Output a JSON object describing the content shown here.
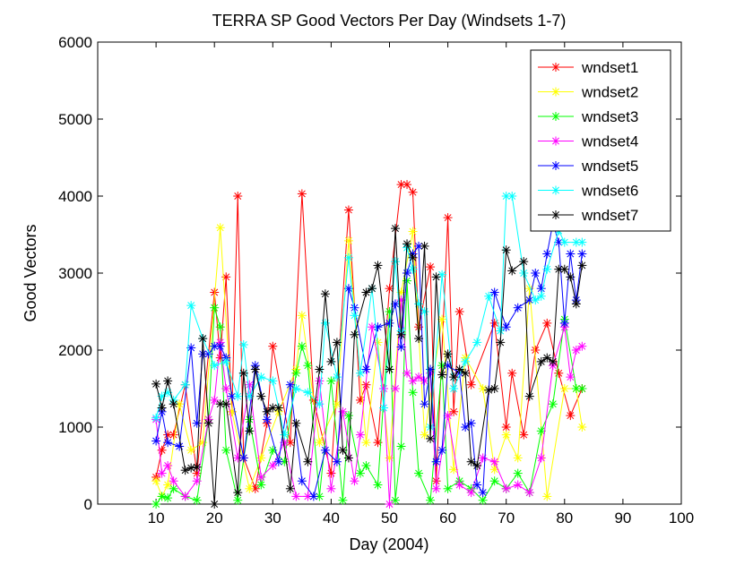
{
  "chart_data": {
    "type": "line",
    "title": "TERRA SP Good Vectors Per Day (Windsets 1-7)",
    "xlabel": "Day (2004)",
    "ylabel": "Good Vectors",
    "xlim": [
      0,
      100
    ],
    "ylim": [
      0,
      6000
    ],
    "xticks": [
      10,
      20,
      30,
      40,
      50,
      60,
      70,
      80,
      90,
      100
    ],
    "yticks": [
      0,
      1000,
      2000,
      3000,
      4000,
      5000,
      6000
    ],
    "grid": false,
    "legend_position": "top-right",
    "marker": "asterisk",
    "series": [
      {
        "name": "wndset1",
        "color": "#ff0000",
        "x": [
          10,
          11,
          12,
          13,
          15,
          17,
          20,
          21,
          22,
          23,
          24,
          25,
          27,
          29,
          30,
          33,
          35,
          37,
          40,
          43,
          45,
          46,
          48,
          50,
          52,
          53,
          54,
          55,
          57,
          58,
          60,
          61,
          62,
          64,
          68,
          70,
          71,
          73,
          75,
          77,
          79,
          81,
          83
        ],
        "y": [
          350,
          700,
          900,
          900,
          1550,
          400,
          2750,
          1900,
          2950,
          1200,
          4000,
          600,
          200,
          1050,
          2050,
          800,
          4030,
          1350,
          400,
          3820,
          1350,
          1550,
          800,
          2800,
          4150,
          4150,
          4050,
          2300,
          3080,
          300,
          3720,
          1200,
          2500,
          1550,
          2350,
          1000,
          1700,
          900,
          2000,
          2350,
          1700,
          1150,
          1500
        ]
      },
      {
        "name": "wndset2",
        "color": "#ffff00",
        "x": [
          10,
          11,
          12,
          14,
          16,
          18,
          21,
          23,
          26,
          28,
          31,
          34,
          35,
          38,
          41,
          43,
          46,
          48,
          50,
          52,
          54,
          56,
          59,
          61,
          63,
          66,
          68,
          70,
          72,
          74,
          77,
          80,
          82,
          83
        ],
        "y": [
          300,
          100,
          250,
          1300,
          700,
          800,
          3590,
          1200,
          200,
          600,
          1200,
          1750,
          2450,
          800,
          1300,
          3420,
          800,
          2100,
          600,
          2750,
          3540,
          900,
          2400,
          450,
          1900,
          1500,
          450,
          900,
          600,
          2800,
          100,
          1500,
          1500,
          1000
        ]
      },
      {
        "name": "wndset3",
        "color": "#00ff00",
        "x": [
          10,
          11,
          12,
          13,
          15,
          17,
          19,
          20,
          21,
          22,
          24,
          26,
          28,
          30,
          32,
          34,
          35,
          36,
          38,
          40,
          42,
          43,
          45,
          46,
          48,
          50,
          51,
          52,
          53,
          54,
          55,
          57,
          59,
          60,
          62,
          64,
          66,
          68,
          70,
          72,
          74,
          76,
          78,
          80,
          82,
          83
        ],
        "y": [
          0,
          100,
          80,
          200,
          100,
          50,
          1100,
          2550,
          2300,
          700,
          50,
          1100,
          250,
          700,
          550,
          1700,
          2050,
          1800,
          100,
          1600,
          50,
          1150,
          400,
          500,
          250,
          2500,
          50,
          750,
          2900,
          1450,
          400,
          50,
          1800,
          200,
          300,
          200,
          50,
          300,
          200,
          400,
          150,
          950,
          1300,
          2400,
          1500,
          1500
        ]
      },
      {
        "name": "wndset4",
        "color": "#ff00ff",
        "x": [
          10,
          11,
          12,
          13,
          15,
          17,
          19,
          20,
          21,
          22,
          24,
          26,
          28,
          30,
          32,
          34,
          36,
          38,
          40,
          42,
          44,
          45,
          47,
          49,
          50,
          51,
          52,
          53,
          54,
          55,
          56,
          57,
          58,
          60,
          62,
          64,
          66,
          68,
          70,
          72,
          74,
          76,
          78,
          80,
          81,
          82,
          83
        ],
        "y": [
          1100,
          400,
          500,
          300,
          100,
          300,
          1100,
          1350,
          2100,
          1500,
          600,
          1550,
          350,
          500,
          800,
          100,
          100,
          1600,
          200,
          1200,
          300,
          900,
          2300,
          1500,
          0,
          1500,
          2650,
          1700,
          1600,
          1650,
          1600,
          1700,
          200,
          1150,
          250,
          150,
          600,
          550,
          200,
          250,
          150,
          600,
          1800,
          2300,
          1650,
          2000,
          2050
        ]
      },
      {
        "name": "wndset5",
        "color": "#0000ff",
        "x": [
          10,
          11,
          12,
          14,
          16,
          17,
          18,
          19,
          20,
          21,
          22,
          23,
          25,
          27,
          29,
          31,
          33,
          35,
          37,
          39,
          41,
          43,
          44,
          46,
          48,
          50,
          51,
          52,
          53,
          54,
          55,
          56,
          57,
          58,
          59,
          60,
          62,
          63,
          64,
          65,
          66,
          68,
          70,
          72,
          74,
          75,
          76,
          77,
          78,
          79,
          80,
          81,
          82,
          83
        ],
        "y": [
          820,
          1200,
          800,
          750,
          2030,
          1050,
          1950,
          1950,
          2050,
          2050,
          1900,
          1400,
          600,
          1800,
          1100,
          550,
          1550,
          300,
          100,
          700,
          550,
          2800,
          2550,
          1750,
          2300,
          2350,
          2600,
          2040,
          3000,
          3250,
          3350,
          1300,
          1750,
          550,
          700,
          1800,
          1700,
          1000,
          1050,
          250,
          150,
          2750,
          2300,
          2550,
          2650,
          3000,
          2800,
          3250,
          3650,
          3400,
          2350,
          3250,
          2650,
          3250
        ]
      },
      {
        "name": "wndset6",
        "color": "#00ffff",
        "x": [
          10,
          11,
          12,
          13,
          15,
          16,
          18,
          20,
          22,
          24,
          25,
          26,
          28,
          30,
          32,
          34,
          36,
          38,
          39,
          41,
          43,
          44,
          45,
          47,
          49,
          51,
          52,
          53,
          54,
          55,
          56,
          57,
          59,
          61,
          63,
          65,
          67,
          69,
          70,
          71,
          73,
          75,
          76,
          77,
          79,
          80,
          82,
          83
        ],
        "y": [
          1120,
          1400,
          1450,
          1350,
          1550,
          2580,
          2150,
          1800,
          1850,
          1400,
          2070,
          1400,
          1650,
          1600,
          900,
          1500,
          1450,
          1300,
          2350,
          1650,
          3200,
          2450,
          1700,
          2800,
          1250,
          3150,
          2250,
          3330,
          3050,
          2600,
          2500,
          1000,
          2980,
          1500,
          1850,
          2100,
          2700,
          2250,
          4000,
          4000,
          3000,
          2650,
          2700,
          3050,
          3550,
          3400,
          3400,
          3400
        ]
      },
      {
        "name": "wndset7",
        "color": "#000000",
        "x": [
          10,
          11,
          12,
          13,
          15,
          16,
          17,
          18,
          19,
          20,
          21,
          22,
          24,
          25,
          26,
          27,
          28,
          29,
          30,
          31,
          33,
          34,
          36,
          38,
          39,
          40,
          41,
          42,
          43,
          44,
          46,
          47,
          48,
          50,
          51,
          52,
          53,
          54,
          55,
          56,
          57,
          58,
          59,
          60,
          61,
          62,
          63,
          64,
          65,
          67,
          68,
          69,
          70,
          71,
          73,
          74,
          76,
          77,
          78,
          79,
          80,
          81,
          82,
          83
        ],
        "y": [
          1560,
          1250,
          1600,
          1300,
          440,
          470,
          480,
          2150,
          1050,
          0,
          1300,
          1300,
          150,
          1700,
          950,
          1750,
          1400,
          1200,
          1250,
          1250,
          200,
          1050,
          550,
          1750,
          2730,
          1850,
          2100,
          700,
          600,
          2200,
          2750,
          2800,
          3100,
          1750,
          3580,
          2200,
          3380,
          3200,
          2150,
          3350,
          850,
          2950,
          1680,
          1950,
          1650,
          1750,
          1700,
          550,
          500,
          1480,
          1500,
          2100,
          3300,
          3030,
          3150,
          1400,
          1850,
          1900,
          1850,
          3050,
          3050,
          2950,
          2600,
          3100
        ]
      }
    ]
  }
}
